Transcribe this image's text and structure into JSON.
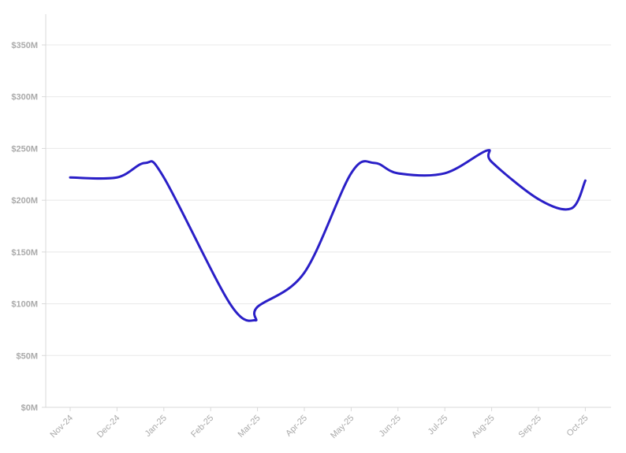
{
  "chart_data": {
    "type": "line",
    "title": "",
    "xlabel": "",
    "ylabel": "",
    "categories": [
      "Nov-24",
      "Dec-24",
      "Jan-25",
      "Feb-25",
      "Mar-25",
      "Apr-25",
      "May-25",
      "Jun-25",
      "Jul-25",
      "Aug-25",
      "Sep-25",
      "Oct-25"
    ],
    "x": [
      "Nov-24",
      "Dec-24",
      "Dec-24/Jan-25",
      "Jan-25",
      "Feb-25",
      "Feb-25/Mar-25",
      "Mar-25",
      "Apr-25",
      "May-25",
      "May-25/Jun-25",
      "Jun-25",
      "Jul-25",
      "Jul-25/Aug-25",
      "Aug-25",
      "Sep-25",
      "Sep-25/Oct-25",
      "Oct-25"
    ],
    "series": [
      {
        "values": [
          222,
          222,
          236,
          222,
          101,
          84,
          97,
          130,
          226,
          236,
          226,
          226,
          248,
          237,
          201,
          192,
          219
        ]
      }
    ],
    "ylim": [
      0,
      350
    ],
    "yticks": [
      "$0M",
      "$50M",
      "$100M",
      "$150M",
      "$200M",
      "$250M",
      "$300M",
      "$350M"
    ],
    "ytick_values": [
      0,
      50,
      100,
      150,
      200,
      250,
      300,
      350
    ],
    "grid": true,
    "legend": "none",
    "line_color": "#2a1fc7",
    "grid_color": "#e8e8e8",
    "label_color": "#aaaaaa"
  }
}
